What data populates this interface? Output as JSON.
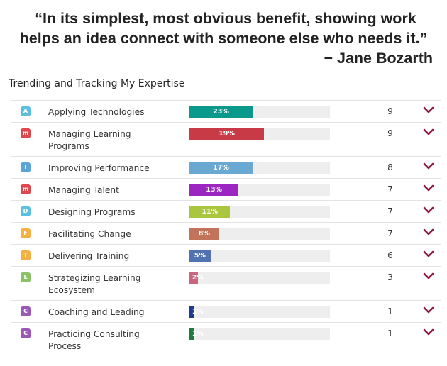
{
  "quote": {
    "line1": "“In its simplest, most obvious benefit, showing work",
    "line2": "helps an idea connect with someone else who needs it.”",
    "author": "− Jane Bozarth"
  },
  "section_title": "Trending and Tracking My Expertise",
  "colors": {
    "chevron": "#8b1e3f",
    "track": "#eeeeee"
  },
  "rows": [
    {
      "badge": "A",
      "badge_color": "#5bc0de",
      "label": "Applying Technologies",
      "percent": "23%",
      "fraction": 0.45,
      "bar_color": "#0a9a8c",
      "count": "9"
    },
    {
      "badge": "m",
      "badge_color": "#e0474c",
      "label": "Managing Learning Programs",
      "percent": "19%",
      "fraction": 0.53,
      "bar_color": "#c93a47",
      "count": "9"
    },
    {
      "badge": "I",
      "badge_color": "#5ba6d6",
      "label": "Improving Performance",
      "percent": "17%",
      "fraction": 0.45,
      "bar_color": "#69a8d3",
      "count": "8"
    },
    {
      "badge": "m",
      "badge_color": "#e0474c",
      "label": "Managing Talent",
      "percent": "13%",
      "fraction": 0.35,
      "bar_color": "#9b27c0",
      "count": "7"
    },
    {
      "badge": "D",
      "badge_color": "#5bc0de",
      "label": "Designing Programs",
      "percent": "11%",
      "fraction": 0.29,
      "bar_color": "#a8c63e",
      "count": "7"
    },
    {
      "badge": "F",
      "badge_color": "#f5b041",
      "label": "Facilitating Change",
      "percent": "8%",
      "fraction": 0.21,
      "bar_color": "#c17459",
      "count": "7"
    },
    {
      "badge": "T",
      "badge_color": "#f5b041",
      "label": "Delivering Training",
      "percent": "5%",
      "fraction": 0.15,
      "bar_color": "#5273b1",
      "count": "6"
    },
    {
      "badge": "L",
      "badge_color": "#8cc265",
      "label": "Strategizing Learning Ecosystem",
      "percent": "2%",
      "fraction": 0.06,
      "bar_color": "#c9657f",
      "count": "3"
    },
    {
      "badge": "C",
      "badge_color": "#9b59b6",
      "label": "Coaching and Leading",
      "percent": "1%",
      "fraction": 0.03,
      "bar_color": "#1d3c8c",
      "count": "1"
    },
    {
      "badge": "C",
      "badge_color": "#9b59b6",
      "label": "Practicing Consulting Process",
      "percent": "1%",
      "fraction": 0.03,
      "bar_color": "#1e7a3e",
      "count": "1"
    }
  ]
}
